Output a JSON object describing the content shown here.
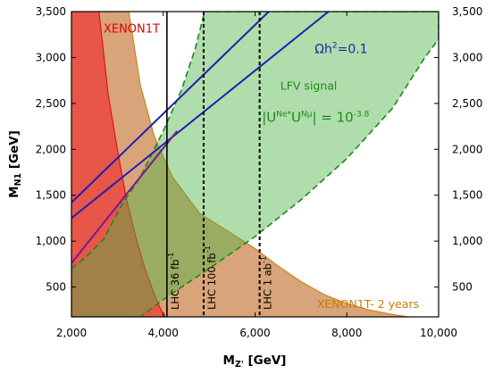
{
  "chart_data": {
    "type": "area",
    "xlabel": "M",
    "xlabel_sub": "Z'",
    "xlabel_unit": " [GeV]",
    "ylabel": "M",
    "ylabel_sub": "N1",
    "ylabel_unit": " [GeV]",
    "xlim": [
      2000,
      10000
    ],
    "ylim": [
      175,
      3500
    ],
    "x_ticks": [
      {
        "v": 2000,
        "label": "2,000"
      },
      {
        "v": 4000,
        "label": "4,000"
      },
      {
        "v": 6000,
        "label": "6,000"
      },
      {
        "v": 8000,
        "label": "8,000"
      },
      {
        "v": 10000,
        "label": "10,000"
      }
    ],
    "y_ticks": [
      {
        "v": 500,
        "label": "500"
      },
      {
        "v": 1000,
        "label": "1,000"
      },
      {
        "v": 1500,
        "label": "1,500"
      },
      {
        "v": 2000,
        "label": "2,000"
      },
      {
        "v": 2500,
        "label": "2,500"
      },
      {
        "v": 3000,
        "label": "3,000"
      },
      {
        "v": 3500,
        "label": "3,500"
      }
    ],
    "grid": false,
    "regions": [
      {
        "key": "xenon1t_2years",
        "fill": "#d9a479",
        "stroke": "#cc7a00",
        "points": [
          [
            3250,
            3500
          ],
          [
            3500,
            2700
          ],
          [
            3800,
            2150
          ],
          [
            4200,
            1700
          ],
          [
            4800,
            1300
          ],
          [
            5500,
            1080
          ],
          [
            6000,
            920
          ],
          [
            6500,
            730
          ],
          [
            7000,
            560
          ],
          [
            7500,
            420
          ],
          [
            8000,
            320
          ],
          [
            8500,
            250
          ],
          [
            9000,
            200
          ],
          [
            9300,
            180
          ],
          [
            9300,
            175
          ],
          [
            2000,
            175
          ],
          [
            2000,
            3500
          ]
        ]
      },
      {
        "key": "xenon1t",
        "fill": "#e8564a",
        "stroke": "#e00000",
        "points": [
          [
            2000,
            3500
          ],
          [
            2600,
            3500
          ],
          [
            2800,
            2600
          ],
          [
            3000,
            2000
          ],
          [
            3200,
            1450
          ],
          [
            3400,
            1050
          ],
          [
            3600,
            700
          ],
          [
            3800,
            430
          ],
          [
            3950,
            250
          ],
          [
            4050,
            175
          ],
          [
            2000,
            175
          ]
        ]
      },
      {
        "key": "lfv_signal",
        "fill": "rgba(80,180,70,0.45)",
        "stroke": "#1a8a1a",
        "dashed": true,
        "points": [
          [
            2000,
            700
          ],
          [
            2300,
            820
          ],
          [
            2700,
            1020
          ],
          [
            3100,
            1400
          ],
          [
            3500,
            1700
          ],
          [
            4000,
            2200
          ],
          [
            4400,
            2650
          ],
          [
            4700,
            3100
          ],
          [
            4900,
            3500
          ],
          [
            10000,
            3500
          ],
          [
            10000,
            3200
          ],
          [
            9700,
            3000
          ],
          [
            9000,
            2450
          ],
          [
            8000,
            1900
          ],
          [
            7000,
            1450
          ],
          [
            6000,
            1050
          ],
          [
            5000,
            700
          ],
          [
            4100,
            400
          ],
          [
            3500,
            175
          ],
          [
            2000,
            175
          ]
        ]
      }
    ],
    "series": [
      {
        "key": "relic1",
        "color": "#1f1fb0",
        "points": [
          [
            2000,
            1420
          ],
          [
            6300,
            3500
          ]
        ]
      },
      {
        "key": "relic2",
        "color": "#1f1fb0",
        "points": [
          [
            2000,
            1250
          ],
          [
            7600,
            3500
          ]
        ]
      },
      {
        "key": "relic3",
        "color": "#7a1a8c",
        "points": [
          [
            2000,
            760
          ],
          [
            4300,
            2200
          ]
        ]
      }
    ],
    "vlines": [
      {
        "key": "lhc36",
        "x": 4080,
        "dashed": false,
        "label": "LHC 36 fb",
        "sup": "-1"
      },
      {
        "key": "lhc100",
        "x": 4880,
        "dashed": true,
        "label": "LHC 100 fb",
        "sup": "-1"
      },
      {
        "key": "lhc1ab",
        "x": 6100,
        "dashed": true,
        "label": "LHC 1 ab",
        "sup": "-1"
      }
    ],
    "annotations": {
      "xenon": {
        "text": "XENON1T",
        "color": "#e00000",
        "x": 2700,
        "y": 3270
      },
      "relic_pre": {
        "text": "Ωh",
        "sup": "2",
        "post": "=0.1",
        "color": "#1f1fb0",
        "x": 7300,
        "y": 3050
      },
      "lfv": {
        "text": "LFV signal",
        "color": "#1a8a1a",
        "x": 6550,
        "y": 2650
      },
      "u_product": {
        "pre": "|U",
        "sup1": "Ne*",
        "mid": "U",
        "sup2": "Nμ",
        "post": "| = 10",
        "sup3": "-3.8",
        "color": "#1a8a1a",
        "x": 6150,
        "y": 2300
      },
      "xenon2y": {
        "text": "XENON1T- 2 years",
        "color": "#cc7a00",
        "x": 7350,
        "y": 270
      }
    }
  }
}
